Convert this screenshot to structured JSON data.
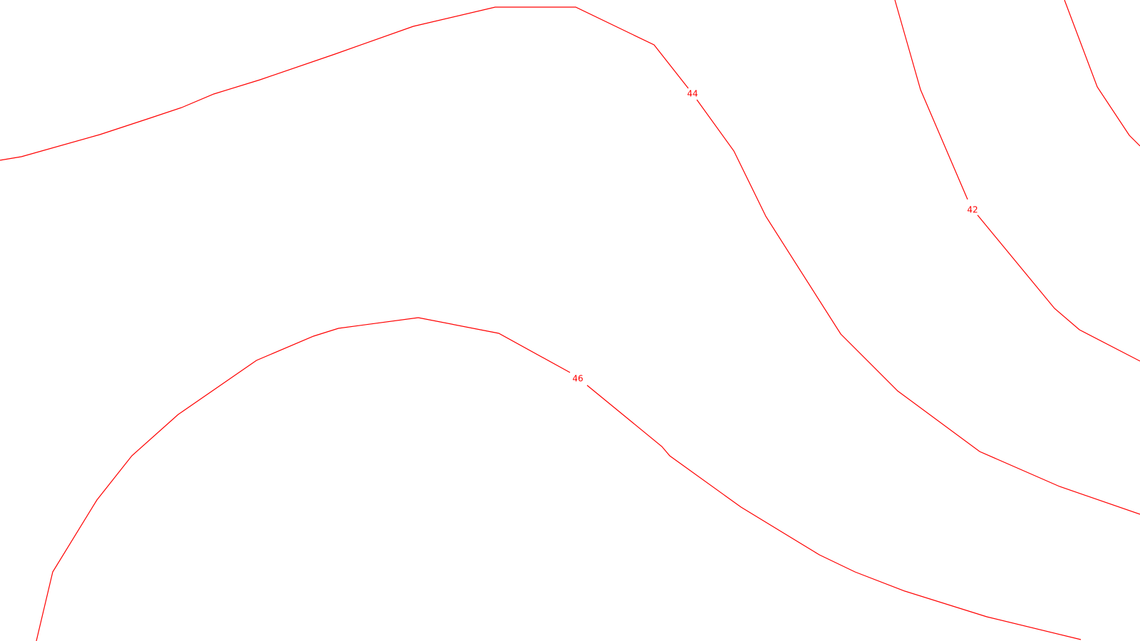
{
  "map": {
    "line_color": "#ff0000",
    "label_color": "#ff0000",
    "background_color": "#ffffff"
  },
  "contours": [
    {
      "id": "contour-44",
      "label": "44"
    },
    {
      "id": "contour-42",
      "label": "42"
    },
    {
      "id": "contour-46",
      "label": "46"
    },
    {
      "id": "contour-upper-right",
      "label": ""
    }
  ]
}
